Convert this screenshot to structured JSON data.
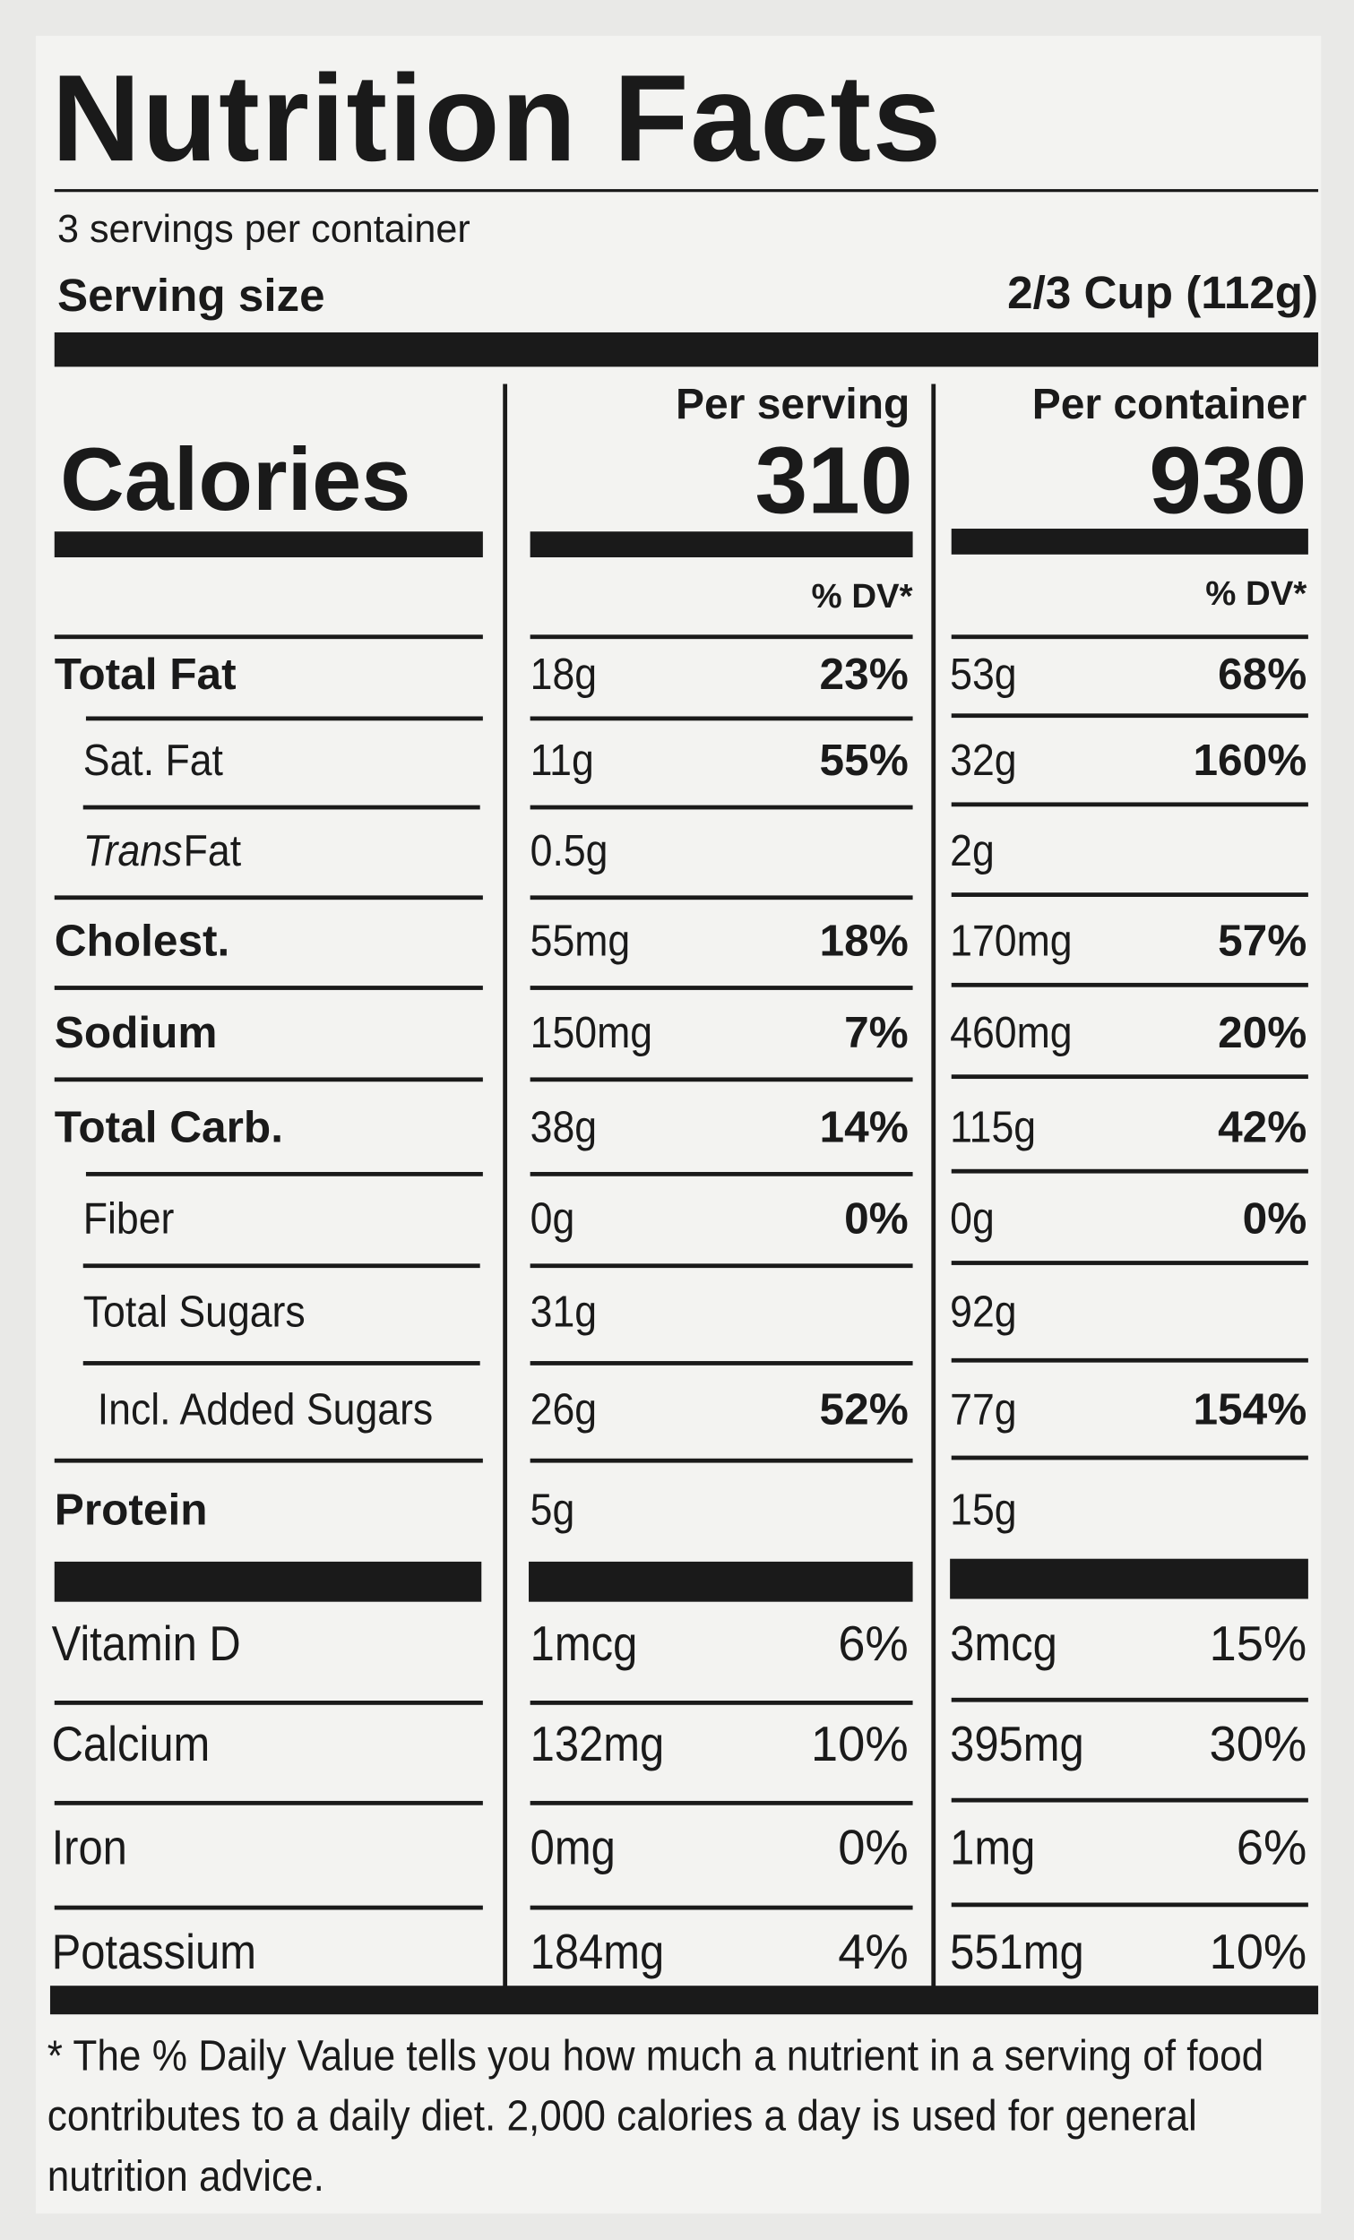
{
  "header": {
    "title": "Nutrition Facts",
    "servings": "3 servings per container",
    "serving_size_label": "Serving size",
    "serving_size_value": "2/3 Cup (112g)"
  },
  "columns": {
    "per_serving": "Per serving",
    "per_container": "Per container",
    "calories_label": "Calories",
    "calories_per_serving": 310,
    "calories_per_container": 930,
    "dv_per_serving": "% DV*",
    "dv_per_container": "% DV*"
  },
  "rows": [
    {
      "label": "Total Fat",
      "serving": "18g",
      "serving_dv": "23%",
      "container": "53g",
      "container_dv": "68%"
    },
    {
      "label": "Sat. Fat",
      "serving": "11g",
      "serving_dv": "55%",
      "container": "32g",
      "container_dv": "160%"
    },
    {
      "label_italic": "Trans",
      "label": "Fat",
      "serving": "0.5g",
      "container": "2g"
    },
    {
      "label": "Cholest.",
      "serving": "55mg",
      "serving_dv": "18%",
      "container": "170mg",
      "container_dv": "57%"
    },
    {
      "label": "Sodium",
      "serving": "150mg",
      "serving_dv": "7%",
      "container": "460mg",
      "container_dv": "20%"
    },
    {
      "label": "Total Carb.",
      "serving": "38g",
      "serving_dv": "14%",
      "container": "115g",
      "container_dv": "42%"
    },
    {
      "label": "Fiber",
      "serving": "0g",
      "serving_dv": "0%",
      "container": "0g",
      "container_dv": "0%"
    },
    {
      "label": "Total Sugars",
      "serving": "31g",
      "container": "92g"
    },
    {
      "label": "Incl. Added Sugars",
      "serving": "26g",
      "serving_dv": "52%",
      "container": "77g",
      "container_dv": "154%"
    },
    {
      "label": "Protein",
      "serving": "5g",
      "container": "15g"
    },
    {
      "label": "Vitamin D",
      "serving": "1mcg",
      "serving_dv": "6%",
      "container": "3mcg",
      "container_dv": "15%"
    },
    {
      "label": "Calcium",
      "serving": "132mg",
      "serving_dv": "10%",
      "container": "395mg",
      "container_dv": "30%"
    },
    {
      "label": "Iron",
      "serving": "0mg",
      "serving_dv": "0%",
      "container": "1mg",
      "container_dv": "6%"
    },
    {
      "label": "Potassium",
      "serving": "184mg",
      "serving_dv": "4%",
      "container": "551mg",
      "container_dv": "10%"
    }
  ],
  "footnote": "* The % Daily Value tells you how much a nutrient in a serving of food contributes to a daily diet. 2,000 calories a day is used for general nutrition advice."
}
